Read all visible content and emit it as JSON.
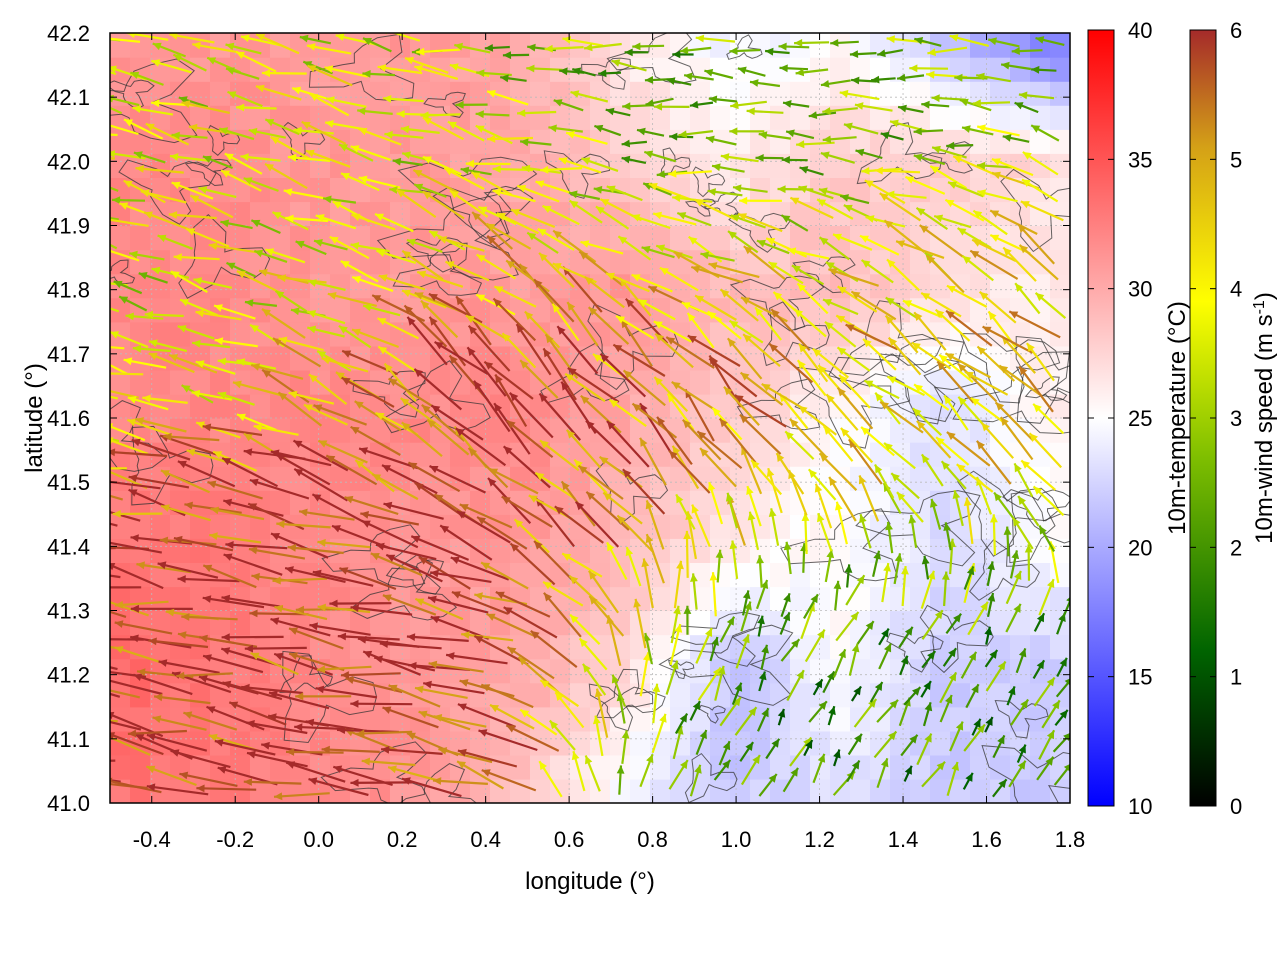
{
  "chart_data": {
    "type": "heatmap",
    "subtype": "wind-vector-field-over-temperature-map",
    "title": "",
    "xlabel": "longitude (°)",
    "ylabel": "latitude (°)",
    "xlim": [
      -0.5,
      1.8
    ],
    "ylim": [
      41.0,
      42.2
    ],
    "x_ticks": [
      "-0.4",
      "-0.2",
      "0.0",
      "0.2",
      "0.4",
      "0.6",
      "0.8",
      "1.0",
      "1.2",
      "1.4",
      "1.6",
      "1.8"
    ],
    "x_tick_values": [
      -0.4,
      -0.2,
      0.0,
      0.2,
      0.4,
      0.6,
      0.8,
      1.0,
      1.2,
      1.4,
      1.6,
      1.8
    ],
    "y_ticks": [
      "41.0",
      "41.1",
      "41.2",
      "41.3",
      "41.4",
      "41.5",
      "41.6",
      "41.7",
      "41.8",
      "41.9",
      "42.0",
      "42.1",
      "42.2"
    ],
    "y_tick_values": [
      41.0,
      41.1,
      41.2,
      41.3,
      41.4,
      41.5,
      41.6,
      41.7,
      41.8,
      41.9,
      42.0,
      42.1,
      42.2
    ],
    "grid": true,
    "temperature_colorbar": {
      "label": "10m-temperature (°C)",
      "range": [
        10,
        40
      ],
      "ticks": [
        "10",
        "15",
        "20",
        "25",
        "30",
        "35",
        "40"
      ],
      "tick_values": [
        10,
        15,
        20,
        25,
        30,
        35,
        40
      ],
      "colors": [
        "#0000ff",
        "#ffffff",
        "#ff0000"
      ]
    },
    "wind_colorbar": {
      "label": "10m-wind speed (m s-1)",
      "label_main": "10m-wind speed (m s",
      "label_sup": "-1",
      "label_end": ")",
      "range": [
        0,
        6
      ],
      "ticks": [
        "0",
        "1",
        "2",
        "3",
        "4",
        "5",
        "6"
      ],
      "tick_values": [
        0,
        1,
        2,
        3,
        4,
        5,
        6
      ],
      "colors": [
        "#000000",
        "#006400",
        "#7fbf00",
        "#ffff00",
        "#d4a017",
        "#a52a2a"
      ]
    },
    "temperature_field_estimate": {
      "lon": [
        -0.5,
        -0.25,
        0.0,
        0.25,
        0.5,
        0.75,
        1.0,
        1.25,
        1.5,
        1.8
      ],
      "lat": [
        41.0,
        41.2,
        41.4,
        41.6,
        41.8,
        42.0,
        42.2
      ],
      "values_degC": [
        [
          33,
          33,
          32,
          31,
          28,
          24,
          22,
          23,
          22,
          22
        ],
        [
          34,
          33,
          32,
          31,
          30,
          27,
          21,
          25,
          22,
          22
        ],
        [
          33,
          33,
          32,
          31,
          31,
          29,
          26,
          25,
          23,
          25
        ],
        [
          32,
          32,
          32,
          32,
          32,
          30,
          28,
          25,
          23,
          26
        ],
        [
          32,
          32,
          31,
          31,
          31,
          31,
          29,
          29,
          27,
          26
        ],
        [
          32,
          32,
          31,
          31,
          30,
          28,
          26,
          28,
          28,
          27
        ],
        [
          31,
          31,
          31,
          31,
          30,
          26,
          24,
          25,
          21,
          16
        ]
      ]
    },
    "wind_field_estimate": {
      "description_regions": [
        {
          "lon": [
            -0.5,
            0.7
          ],
          "lat": [
            41.0,
            41.5
          ],
          "dir_deg_math": 170,
          "speed_ms": 6.0
        },
        {
          "lon": [
            0.2,
            1.1
          ],
          "lat": [
            41.5,
            41.8
          ],
          "dir_deg_math": 130,
          "speed_ms": 5.5
        },
        {
          "lon": [
            -0.5,
            0.3
          ],
          "lat": [
            41.6,
            42.2
          ],
          "dir_deg_math": 165,
          "speed_ms": 3.5
        },
        {
          "lon": [
            1.1,
            1.8
          ],
          "lat": [
            41.4,
            41.9
          ],
          "dir_deg_math": 140,
          "speed_ms": 4.5
        },
        {
          "lon": [
            0.8,
            1.8
          ],
          "lat": [
            41.0,
            41.3
          ],
          "dir_deg_math": 60,
          "speed_ms": 2.0
        },
        {
          "lon": [
            0.5,
            1.5
          ],
          "lat": [
            41.9,
            42.2
          ],
          "dir_deg_math": 180,
          "speed_ms": 2.5
        }
      ]
    }
  }
}
